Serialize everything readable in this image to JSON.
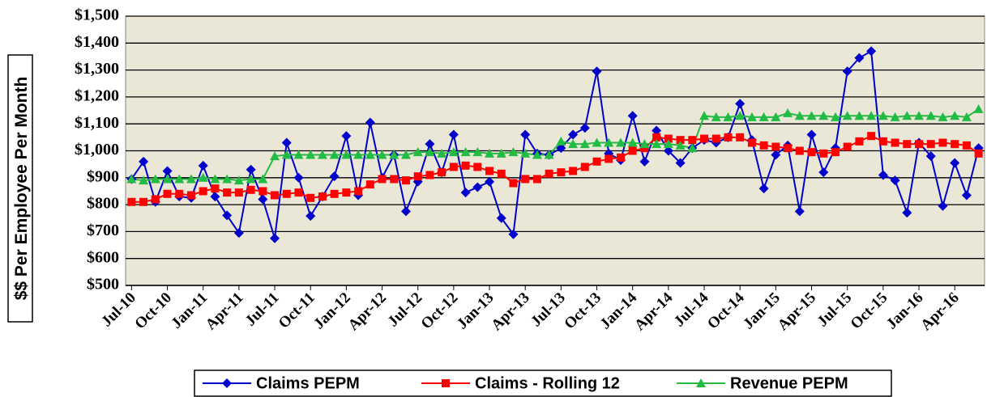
{
  "chart_data": {
    "type": "line",
    "y_label": "$$ Per Employee Per Month",
    "categories": [
      "Jul-10",
      null,
      null,
      "Oct-10",
      null,
      null,
      "Jan-11",
      null,
      null,
      "Apr-11",
      null,
      null,
      "Jul-11",
      null,
      null,
      "Oct-11",
      null,
      null,
      "Jan-12",
      null,
      null,
      "Apr-12",
      null,
      null,
      "Jul-12",
      null,
      null,
      "Oct-12",
      null,
      null,
      "Jan-13",
      null,
      null,
      "Apr-13",
      null,
      null,
      "Jul-13",
      null,
      null,
      "Oct-13",
      null,
      null,
      "Jan-14",
      null,
      null,
      "Apr-14",
      null,
      null,
      "Jul-14",
      null,
      null,
      "Oct-14",
      null,
      null,
      "Jan-15",
      null,
      null,
      "Apr-15",
      null,
      null,
      "Jul-15",
      null,
      null,
      "Oct-15",
      null,
      null,
      "Jan-16",
      null,
      null,
      "Apr-16",
      null,
      null
    ],
    "series": [
      {
        "name": "Claims PEPM",
        "color": "#0000cc",
        "marker": "diamond",
        "values": [
          895,
          960,
          810,
          925,
          830,
          825,
          945,
          830,
          760,
          695,
          930,
          820,
          675,
          1030,
          900,
          758,
          830,
          905,
          1055,
          835,
          1105,
          900,
          985,
          775,
          885,
          1025,
          920,
          1060,
          845,
          865,
          885,
          750,
          690,
          1060,
          990,
          985,
          1010,
          1060,
          1085,
          1295,
          990,
          965,
          1130,
          960,
          1075,
          1000,
          955,
          1010,
          1040,
          1030,
          1050,
          1175,
          1040,
          860,
          985,
          1020,
          775,
          1060,
          920,
          1010,
          1295,
          1345,
          1370,
          910,
          890,
          770,
          1030,
          980,
          795,
          955,
          835,
          1010
        ]
      },
      {
        "name": "Claims - Rolling 12",
        "color": "#ff0000",
        "marker": "square",
        "values": [
          810,
          810,
          820,
          840,
          840,
          835,
          850,
          860,
          845,
          845,
          855,
          850,
          835,
          840,
          845,
          825,
          830,
          840,
          845,
          850,
          875,
          895,
          895,
          890,
          905,
          910,
          920,
          940,
          945,
          940,
          925,
          915,
          880,
          895,
          895,
          915,
          920,
          925,
          940,
          960,
          970,
          975,
          1000,
          1010,
          1050,
          1045,
          1040,
          1040,
          1045,
          1045,
          1050,
          1050,
          1030,
          1020,
          1015,
          1010,
          1000,
          995,
          990,
          995,
          1015,
          1035,
          1055,
          1035,
          1030,
          1025,
          1025,
          1025,
          1030,
          1025,
          1020,
          990
        ]
      },
      {
        "name": "Revenue PEPM",
        "color": "#22bb44",
        "marker": "triangle",
        "values": [
          895,
          890,
          895,
          895,
          895,
          895,
          900,
          895,
          895,
          890,
          895,
          895,
          980,
          985,
          985,
          985,
          985,
          985,
          985,
          985,
          985,
          985,
          985,
          985,
          995,
          995,
          990,
          995,
          995,
          995,
          990,
          990,
          995,
          990,
          985,
          985,
          1035,
          1025,
          1025,
          1030,
          1030,
          1030,
          1030,
          1025,
          1025,
          1025,
          1020,
          1010,
          1130,
          1125,
          1125,
          1130,
          1125,
          1125,
          1125,
          1140,
          1130,
          1130,
          1130,
          1125,
          1130,
          1130,
          1130,
          1130,
          1125,
          1130,
          1130,
          1130,
          1125,
          1130,
          1125,
          1155
        ]
      }
    ],
    "ylim": [
      500,
      1500
    ],
    "yticks": [
      {
        "value": 500,
        "label": "$500"
      },
      {
        "value": 600,
        "label": "$600"
      },
      {
        "value": 700,
        "label": "$700"
      },
      {
        "value": 800,
        "label": "$800"
      },
      {
        "value": 900,
        "label": "$900"
      },
      {
        "value": 1000,
        "label": "$1,000"
      },
      {
        "value": 1100,
        "label": "$1,100"
      },
      {
        "value": 1200,
        "label": "$1,200"
      },
      {
        "value": 1300,
        "label": "$1,300"
      },
      {
        "value": 1400,
        "label": "$1,400"
      },
      {
        "value": 1500,
        "label": "$1,500"
      }
    ],
    "grid": true,
    "plot_background": "#eae7d7",
    "legend": "bottom"
  }
}
